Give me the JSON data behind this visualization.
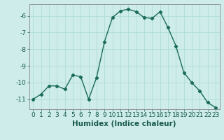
{
  "x": [
    0,
    1,
    2,
    3,
    4,
    5,
    6,
    7,
    8,
    9,
    10,
    11,
    12,
    13,
    14,
    15,
    16,
    17,
    18,
    19,
    20,
    21,
    22,
    23
  ],
  "y": [
    -11.0,
    -10.7,
    -10.2,
    -10.2,
    -10.4,
    -9.55,
    -9.65,
    -11.0,
    -9.7,
    -7.55,
    -6.1,
    -5.7,
    -5.6,
    -5.75,
    -6.1,
    -6.15,
    -5.75,
    -6.7,
    -7.8,
    -9.4,
    -10.0,
    -10.5,
    -11.2,
    -11.5
  ],
  "line_color": "#1a6b5a",
  "marker": "D",
  "markersize": 2.2,
  "linewidth": 1.0,
  "background_color": "#cdecea",
  "grid_color": "#b0ddd8",
  "xlabel": "Humidex (Indice chaleur)",
  "xlim": [
    -0.5,
    23.5
  ],
  "ylim": [
    -11.6,
    -5.3
  ],
  "yticks": [
    -11,
    -10,
    -9,
    -8,
    -7,
    -6
  ],
  "tick_fontsize": 6.5,
  "xlabel_fontsize": 7.5
}
